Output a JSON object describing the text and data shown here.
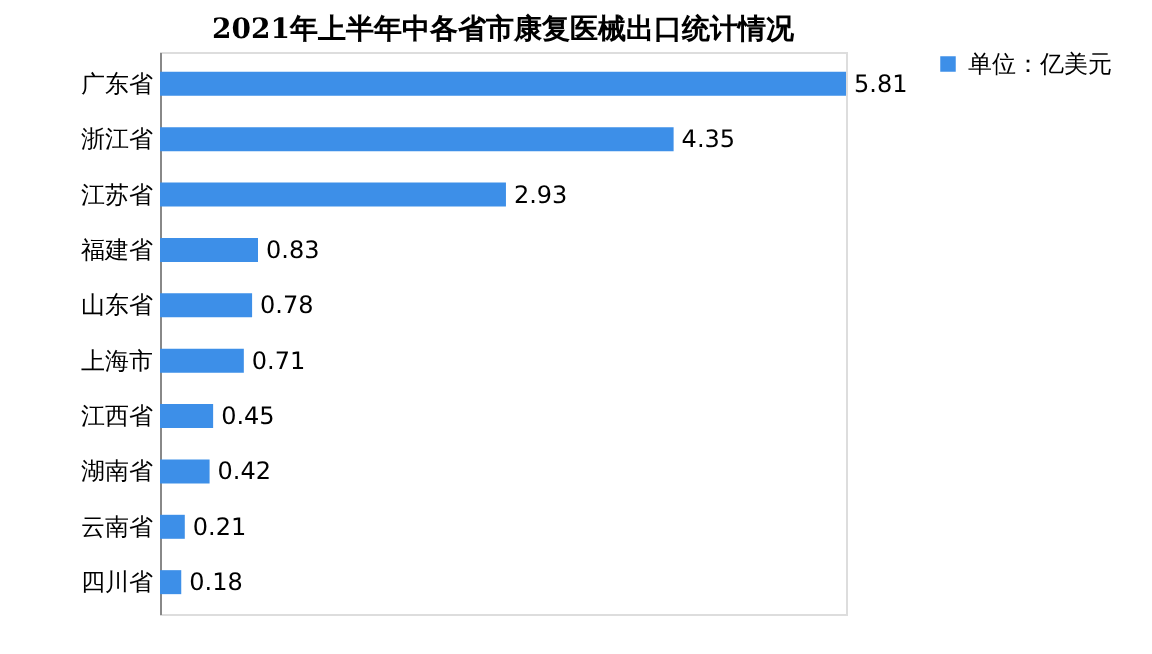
{
  "chart_data": {
    "type": "bar",
    "orientation": "horizontal",
    "title": "2021年上半年中各省市康复医械出口统计情况",
    "categories": [
      "广东省",
      "浙江省",
      "江苏省",
      "福建省",
      "山东省",
      "上海市",
      "江西省",
      "湖南省",
      "云南省",
      "四川省"
    ],
    "series": [
      {
        "name": "单位：亿美元",
        "color": "#3d8fe8",
        "values": [
          5.81,
          4.35,
          2.93,
          0.83,
          0.78,
          0.71,
          0.45,
          0.42,
          0.21,
          0.18
        ]
      }
    ],
    "data_labels": true,
    "legend": "right",
    "grid": false,
    "tick_labels": "y"
  }
}
